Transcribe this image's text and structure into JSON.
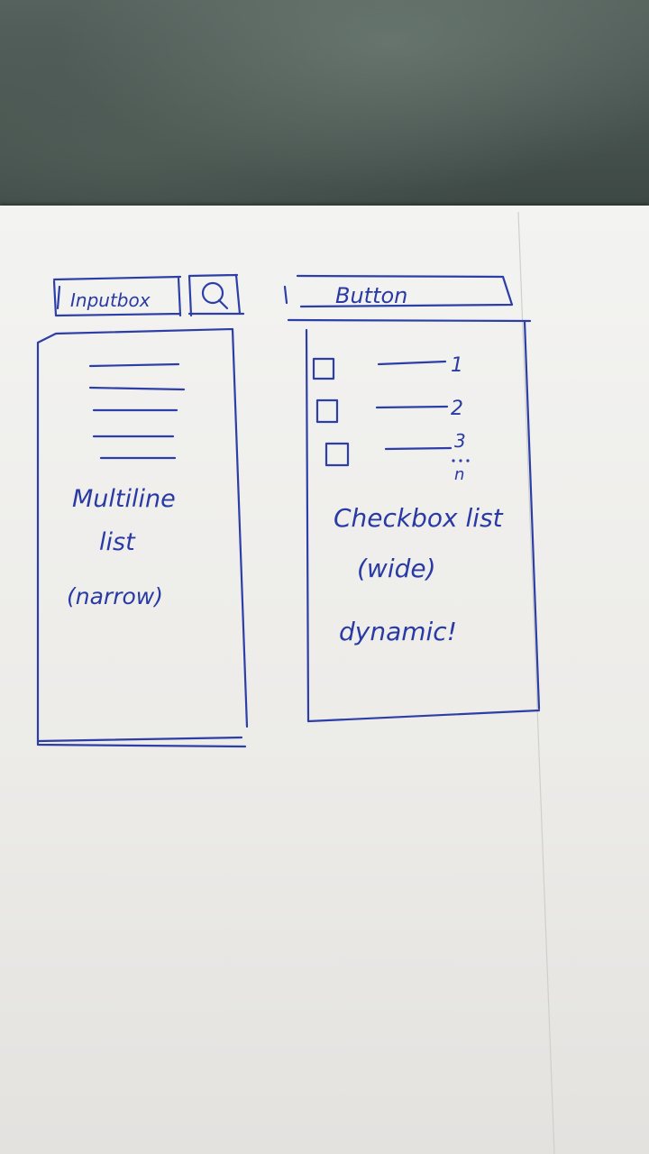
{
  "left_panel": {
    "input_label": "Inputbox",
    "search_icon": "search-icon",
    "list_caption_1": "Multiline",
    "list_caption_2": "list",
    "list_caption_3": "(narrow)"
  },
  "right_panel": {
    "button_label": "Button",
    "items": [
      {
        "number": "1"
      },
      {
        "number": "2"
      },
      {
        "number": "3"
      }
    ],
    "item_last": "n",
    "caption_1": "Checkbox list",
    "caption_2": "(wide)",
    "caption_3": "dynamic!"
  },
  "colors": {
    "ink": "#2d3ea6",
    "paper": "#f3f3f1",
    "background": "#3f4a46"
  }
}
